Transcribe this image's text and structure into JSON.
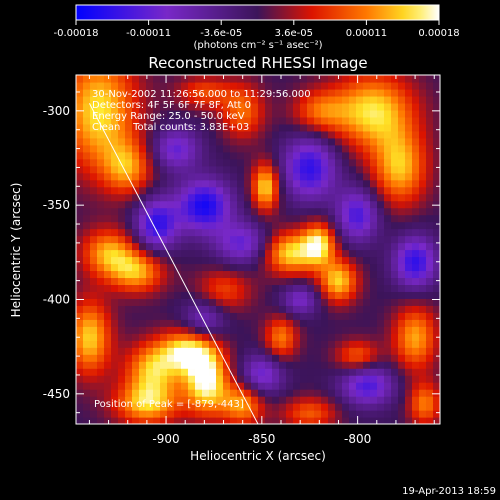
{
  "chart_data": {
    "type": "heatmap",
    "title": "Reconstructed RHESSI Image",
    "xlabel": "Heliocentric X (arcsec)",
    "ylabel": "Heliocentric Y (arcsec)",
    "xlim": [
      -947,
      -757
    ],
    "ylim": [
      -466,
      -281
    ],
    "x_ticks": [
      -900,
      -850,
      -800
    ],
    "y_ticks": [
      -300,
      -350,
      -400,
      -450
    ],
    "colorbar": {
      "ticks": [
        "-0.00018",
        "-0.00011",
        "-3.6e-05",
        "3.6e-05",
        "0.00011",
        "0.00018"
      ],
      "label": "(photons cm⁻² s⁻¹ asec⁻²)",
      "range": [
        -0.00018,
        0.00018
      ]
    },
    "annotations": [
      "30-Nov-2002 11:26:56.000 to 11:29:56.000",
      "Detectors: 4F 5F 6F 7F 8F, Att 0",
      "Energy Range: 25.0 - 50.0 keV",
      "Clean    Total counts: 3.83E+03"
    ],
    "peak_label": "Position of Peak = [-879,-443]",
    "peak": [
      -879,
      -443
    ],
    "limb_line": [
      [
        -940,
        -296
      ],
      [
        -852,
        -466
      ]
    ],
    "blobs": [
      {
        "x": -879,
        "y": -443,
        "sx": 8,
        "sy": 12,
        "v": 1.0
      },
      {
        "x": -889,
        "y": -427,
        "sx": 10,
        "sy": 8,
        "v": 0.85
      },
      {
        "x": -907,
        "y": -437,
        "sx": 10,
        "sy": 10,
        "v": 0.75
      },
      {
        "x": -860,
        "y": -455,
        "sx": 8,
        "sy": 8,
        "v": 0.7
      },
      {
        "x": -935,
        "y": -300,
        "sx": 14,
        "sy": 22,
        "v": 0.85
      },
      {
        "x": -920,
        "y": -330,
        "sx": 9,
        "sy": 10,
        "v": 0.6
      },
      {
        "x": -930,
        "y": -375,
        "sx": 10,
        "sy": 9,
        "v": 0.7
      },
      {
        "x": -915,
        "y": -385,
        "sx": 10,
        "sy": 8,
        "v": 0.7
      },
      {
        "x": -940,
        "y": -420,
        "sx": 8,
        "sy": 14,
        "v": 0.8
      },
      {
        "x": -910,
        "y": -455,
        "sx": 12,
        "sy": 8,
        "v": 0.75
      },
      {
        "x": -848,
        "y": -340,
        "sx": 5,
        "sy": 9,
        "v": 0.85
      },
      {
        "x": -835,
        "y": -375,
        "sx": 10,
        "sy": 8,
        "v": 0.85
      },
      {
        "x": -820,
        "y": -370,
        "sx": 6,
        "sy": 8,
        "v": 0.8
      },
      {
        "x": -810,
        "y": -390,
        "sx": 7,
        "sy": 8,
        "v": 0.8
      },
      {
        "x": -840,
        "y": -420,
        "sx": 6,
        "sy": 8,
        "v": 0.6
      },
      {
        "x": -800,
        "y": -430,
        "sx": 8,
        "sy": 6,
        "v": 0.55
      },
      {
        "x": -792,
        "y": -300,
        "sx": 15,
        "sy": 14,
        "v": 0.85
      },
      {
        "x": -778,
        "y": -330,
        "sx": 10,
        "sy": 14,
        "v": 0.75
      },
      {
        "x": -770,
        "y": -420,
        "sx": 8,
        "sy": 12,
        "v": 0.7
      },
      {
        "x": -765,
        "y": -455,
        "sx": 6,
        "sy": 8,
        "v": 0.6
      },
      {
        "x": -820,
        "y": -300,
        "sx": 10,
        "sy": 8,
        "v": 0.5
      },
      {
        "x": -860,
        "y": -300,
        "sx": 8,
        "sy": 10,
        "v": 0.55
      },
      {
        "x": -880,
        "y": -290,
        "sx": 10,
        "sy": 6,
        "v": 0.45
      },
      {
        "x": -870,
        "y": -395,
        "sx": 10,
        "sy": 8,
        "v": 0.45
      },
      {
        "x": -825,
        "y": -460,
        "sx": 10,
        "sy": 6,
        "v": 0.5
      },
      {
        "x": -880,
        "y": -350,
        "sx": 10,
        "sy": 10,
        "v": -0.9
      },
      {
        "x": -905,
        "y": -360,
        "sx": 8,
        "sy": 10,
        "v": -0.8
      },
      {
        "x": -825,
        "y": -330,
        "sx": 10,
        "sy": 12,
        "v": -0.8
      },
      {
        "x": -895,
        "y": -320,
        "sx": 9,
        "sy": 8,
        "v": -0.6
      },
      {
        "x": -860,
        "y": -370,
        "sx": 10,
        "sy": 8,
        "v": -0.6
      },
      {
        "x": -800,
        "y": -355,
        "sx": 8,
        "sy": 10,
        "v": -0.7
      },
      {
        "x": -880,
        "y": -410,
        "sx": 8,
        "sy": 8,
        "v": -0.5
      },
      {
        "x": -850,
        "y": -440,
        "sx": 8,
        "sy": 8,
        "v": -0.6
      },
      {
        "x": -795,
        "y": -445,
        "sx": 10,
        "sy": 8,
        "v": -0.7
      },
      {
        "x": -770,
        "y": -380,
        "sx": 8,
        "sy": 10,
        "v": -0.8
      },
      {
        "x": -830,
        "y": -400,
        "sx": 7,
        "sy": 6,
        "v": -0.5
      }
    ]
  },
  "footer": {
    "date": "19-Apr-2013 18:59"
  }
}
